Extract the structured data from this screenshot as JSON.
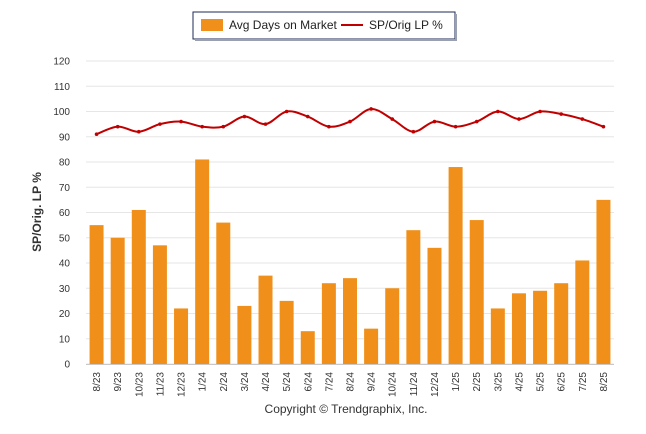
{
  "chart_data": {
    "type": "bar",
    "categories": [
      "8/23",
      "9/23",
      "10/23",
      "11/23",
      "12/23",
      "1/24",
      "2/24",
      "3/24",
      "4/24",
      "5/24",
      "6/24",
      "7/24",
      "8/24",
      "9/24",
      "10/24",
      "11/24",
      "12/24",
      "1/25",
      "2/25",
      "3/25",
      "4/25",
      "5/25",
      "6/25",
      "7/25",
      "8/25"
    ],
    "series": [
      {
        "name": "Avg Days on Market",
        "type": "bar",
        "color": "#f0901a",
        "values": [
          55,
          50,
          61,
          47,
          22,
          81,
          56,
          23,
          35,
          25,
          13,
          32,
          34,
          14,
          30,
          53,
          46,
          78,
          57,
          22,
          28,
          29,
          32,
          41,
          65
        ]
      },
      {
        "name": "SP/Orig LP %",
        "type": "line",
        "color": "#c00000",
        "values": [
          91,
          94,
          92,
          95,
          96,
          94,
          94,
          98,
          95,
          100,
          98,
          94,
          96,
          101,
          97,
          92,
          96,
          94,
          96,
          100,
          97,
          100,
          99,
          97,
          94
        ]
      }
    ],
    "ylabel": "SP/Orig. LP %",
    "ylim": [
      0,
      120
    ],
    "yticks": [
      0,
      10,
      20,
      30,
      40,
      50,
      60,
      70,
      80,
      90,
      100,
      110,
      120
    ],
    "grid": true,
    "legend_position": "top-center"
  },
  "footer": {
    "copyright": "Copyright © Trendgraphix, Inc."
  }
}
